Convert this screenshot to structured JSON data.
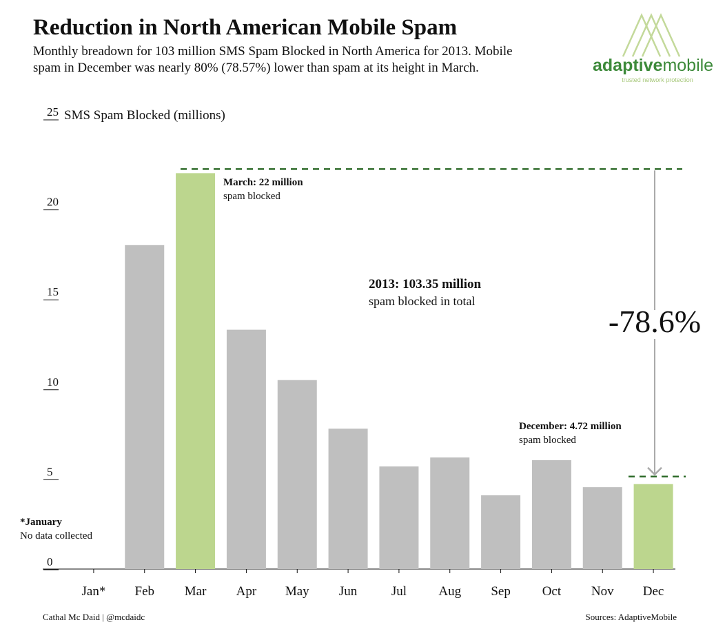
{
  "chart_data": {
    "type": "bar",
    "title": "Reduction in North American Mobile Spam",
    "subtitle_lines": [
      "Monthly breadown for 103 million SMS Spam Blocked in North America for 2013. Mobile",
      "spam in December was nearly 80% (78.57%) lower than spam at its height in March."
    ],
    "y_label": "SMS Spam Blocked (millions)",
    "categories": [
      "Jan*",
      "Feb",
      "Mar",
      "Apr",
      "May",
      "Jun",
      "Jul",
      "Aug",
      "Sep",
      "Oct",
      "Nov",
      "Dec"
    ],
    "values": [
      null,
      18,
      22,
      13.3,
      10.5,
      7.8,
      5.7,
      6.2,
      4.1,
      6.05,
      4.55,
      4.72
    ],
    "colors": [
      "#bfbfbf",
      "#bfbfbf",
      "#bcd68e",
      "#bfbfbf",
      "#bfbfbf",
      "#bfbfbf",
      "#bfbfbf",
      "#bfbfbf",
      "#bfbfbf",
      "#bfbfbf",
      "#bfbfbf",
      "#bcd68e"
    ],
    "ylim": [
      0,
      25
    ],
    "yticks": [
      0,
      5,
      10,
      15,
      20,
      25
    ],
    "annotations": {
      "march_title": "March: 22 million",
      "march_sub": "spam blocked",
      "total_title": "2013: 103.35 million",
      "total_sub": "spam blocked in total",
      "change": "-78.6%",
      "dec_title": "December: 4.72 million",
      "dec_sub": "spam blocked",
      "jan_title": "*January",
      "jan_sub": "No data collected"
    },
    "footer_left": "Cathal Mc Daid | @mcdaidc",
    "footer_right": "Sources: AdaptiveMobile",
    "logo": {
      "name_bold": "adaptive",
      "name_light": "mobile",
      "tagline": "trusted network protection"
    }
  }
}
